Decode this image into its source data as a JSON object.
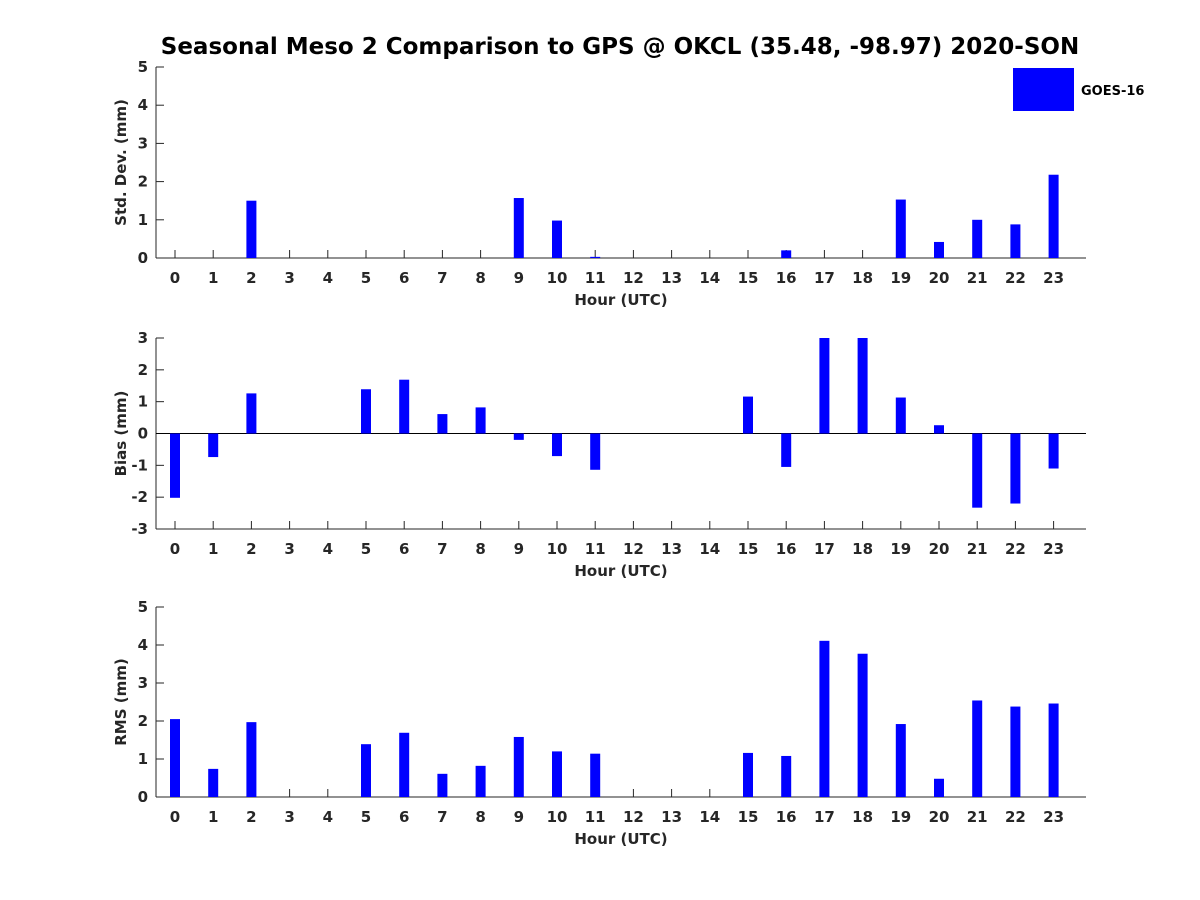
{
  "title": "Seasonal Meso 2 Comparison to GPS @ OKCL (35.48, -98.97) 2020-SON",
  "legend": {
    "label": "GOES-16",
    "color": "#0000ff",
    "placement": "top-right"
  },
  "chart_data": [
    {
      "type": "bar",
      "xlabel": "Hour (UTC)",
      "ylabel": "Std. Dev. (mm)",
      "ylim": [
        0,
        5
      ],
      "yticks": [
        0,
        1,
        2,
        3,
        4,
        5
      ],
      "categories": [
        "0",
        "1",
        "2",
        "3",
        "4",
        "5",
        "6",
        "7",
        "8",
        "9",
        "10",
        "11",
        "12",
        "13",
        "14",
        "15",
        "16",
        "17",
        "18",
        "19",
        "20",
        "21",
        "22",
        "23"
      ],
      "series": [
        {
          "name": "GOES-16",
          "values": [
            0,
            0,
            1.5,
            0,
            0,
            0,
            0,
            0,
            0,
            1.57,
            0.98,
            0.03,
            0,
            0,
            0,
            0,
            0.2,
            0,
            0,
            1.53,
            0.42,
            1.0,
            0.88,
            2.18
          ]
        }
      ]
    },
    {
      "type": "bar",
      "xlabel": "Hour (UTC)",
      "ylabel": "Bias (mm)",
      "ylim": [
        -3,
        3
      ],
      "yticks": [
        -3,
        -2,
        -1,
        0,
        1,
        2,
        3
      ],
      "categories": [
        "0",
        "1",
        "2",
        "3",
        "4",
        "5",
        "6",
        "7",
        "8",
        "9",
        "10",
        "11",
        "12",
        "13",
        "14",
        "15",
        "16",
        "17",
        "18",
        "19",
        "20",
        "21",
        "22",
        "23"
      ],
      "series": [
        {
          "name": "GOES-16",
          "values": [
            -2.02,
            -0.74,
            1.26,
            0,
            0,
            1.39,
            1.69,
            0.61,
            0.82,
            -0.2,
            -0.71,
            -1.14,
            0,
            0,
            0,
            1.16,
            -1.05,
            3.0,
            3.0,
            1.13,
            0.26,
            -2.33,
            -2.2,
            -1.1
          ]
        }
      ]
    },
    {
      "type": "bar",
      "xlabel": "Hour (UTC)",
      "ylabel": "RMS (mm)",
      "ylim": [
        0,
        5
      ],
      "yticks": [
        0,
        1,
        2,
        3,
        4,
        5
      ],
      "categories": [
        "0",
        "1",
        "2",
        "3",
        "4",
        "5",
        "6",
        "7",
        "8",
        "9",
        "10",
        "11",
        "12",
        "13",
        "14",
        "15",
        "16",
        "17",
        "18",
        "19",
        "20",
        "21",
        "22",
        "23"
      ],
      "series": [
        {
          "name": "GOES-16",
          "values": [
            2.05,
            0.74,
            1.97,
            0,
            0,
            1.39,
            1.69,
            0.61,
            0.82,
            1.58,
            1.2,
            1.14,
            0,
            0,
            0,
            1.16,
            1.08,
            4.11,
            3.77,
            1.92,
            0.48,
            2.54,
            2.38,
            2.46
          ]
        }
      ]
    }
  ]
}
